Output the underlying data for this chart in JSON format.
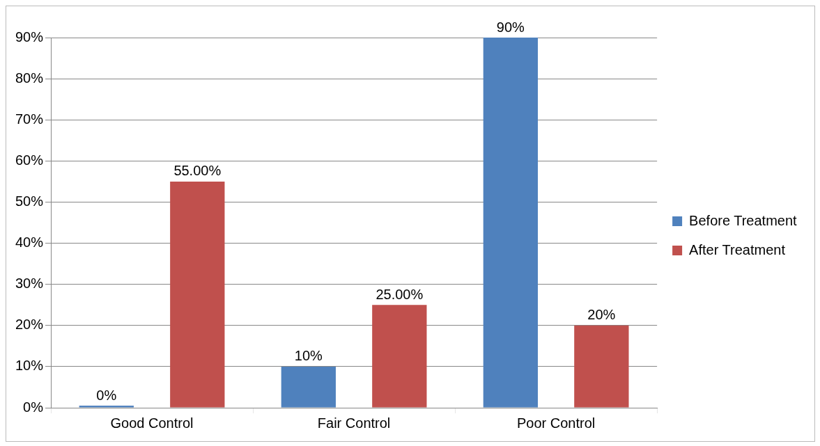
{
  "chart_data": {
    "type": "bar",
    "categories": [
      "Good Control",
      "Fair Control",
      "Poor Control"
    ],
    "series": [
      {
        "name": "Before Treatment",
        "color": "#4f81bd",
        "values": [
          0,
          10,
          90
        ],
        "value_labels": [
          "0%",
          "10%",
          "90%"
        ]
      },
      {
        "name": "After Treatment",
        "color": "#c0504d",
        "values": [
          55,
          25,
          20
        ],
        "value_labels": [
          "55.00%",
          "25.00%",
          "20%"
        ]
      }
    ],
    "ylim": [
      0,
      90
    ],
    "yticks": [
      {
        "value": 0,
        "label": "0%"
      },
      {
        "value": 10,
        "label": "10%"
      },
      {
        "value": 20,
        "label": "20%"
      },
      {
        "value": 30,
        "label": "30%"
      },
      {
        "value": 40,
        "label": "40%"
      },
      {
        "value": 50,
        "label": "50%"
      },
      {
        "value": 60,
        "label": "60%"
      },
      {
        "value": 70,
        "label": "70%"
      },
      {
        "value": 80,
        "label": "80%"
      },
      {
        "value": 90,
        "label": "90%"
      }
    ],
    "grid": true,
    "legend": "right"
  }
}
